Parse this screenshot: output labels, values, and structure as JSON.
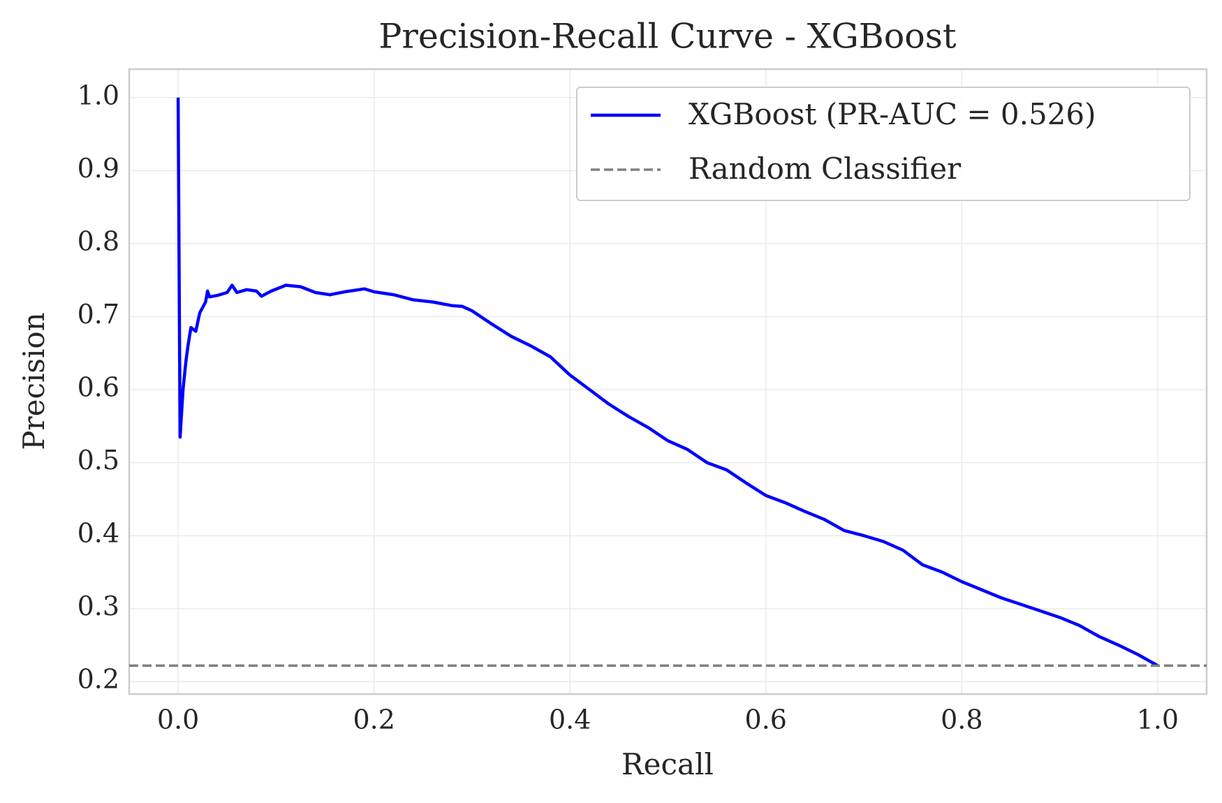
{
  "chart_data": {
    "type": "line",
    "title": "Precision-Recall Curve - XGBoost",
    "x_label": "Recall",
    "y_label": "Precision",
    "xlim": [
      -0.05,
      1.05
    ],
    "ylim": [
      0.183,
      1.039
    ],
    "xticks": [
      {
        "value": 0,
        "label": "0.0"
      },
      0.2,
      0.4,
      0.6,
      0.8,
      {
        "value": 1,
        "label": "1.0"
      }
    ],
    "yticks": [
      0.2,
      0.3,
      0.4,
      0.5,
      0.6,
      0.7,
      0.8,
      0.9,
      {
        "value": 1,
        "label": "1.0"
      }
    ],
    "grid": true,
    "legend": "upper right",
    "series": [
      {
        "name": "XGBoost (PR-AUC = 0.526)",
        "color": "#0000ff",
        "x": [
          0,
          0.002,
          0.005,
          0.008,
          0.01,
          0.013,
          0.018,
          0.022,
          0.028,
          0.03,
          0.032,
          0.04,
          0.05,
          0.055,
          0.06,
          0.07,
          0.08,
          0.085,
          0.095,
          0.11,
          0.125,
          0.14,
          0.155,
          0.17,
          0.19,
          0.2,
          0.22,
          0.24,
          0.26,
          0.28,
          0.29,
          0.3,
          0.32,
          0.34,
          0.36,
          0.38,
          0.4,
          0.42,
          0.44,
          0.46,
          0.48,
          0.5,
          0.52,
          0.54,
          0.56,
          0.58,
          0.6,
          0.62,
          0.64,
          0.66,
          0.68,
          0.7,
          0.72,
          0.74,
          0.76,
          0.78,
          0.8,
          0.82,
          0.84,
          0.86,
          0.88,
          0.9,
          0.92,
          0.94,
          0.96,
          0.98,
          1.0
        ],
        "values": [
          1.0,
          0.535,
          0.6,
          0.64,
          0.66,
          0.685,
          0.68,
          0.705,
          0.72,
          0.735,
          0.727,
          0.729,
          0.733,
          0.743,
          0.733,
          0.737,
          0.735,
          0.728,
          0.735,
          0.743,
          0.741,
          0.733,
          0.73,
          0.734,
          0.738,
          0.734,
          0.73,
          0.723,
          0.72,
          0.715,
          0.714,
          0.708,
          0.69,
          0.673,
          0.66,
          0.645,
          0.62,
          0.6,
          0.58,
          0.563,
          0.548,
          0.53,
          0.518,
          0.5,
          0.49,
          0.472,
          0.455,
          0.445,
          0.433,
          0.422,
          0.407,
          0.4,
          0.392,
          0.38,
          0.36,
          0.35,
          0.337,
          0.326,
          0.315,
          0.306,
          0.297,
          0.288,
          0.277,
          0.262,
          0.25,
          0.237,
          0.222
        ]
      },
      {
        "name": "Random Classifier",
        "color": "#808080",
        "dashed": true,
        "hline": 0.222
      }
    ]
  }
}
